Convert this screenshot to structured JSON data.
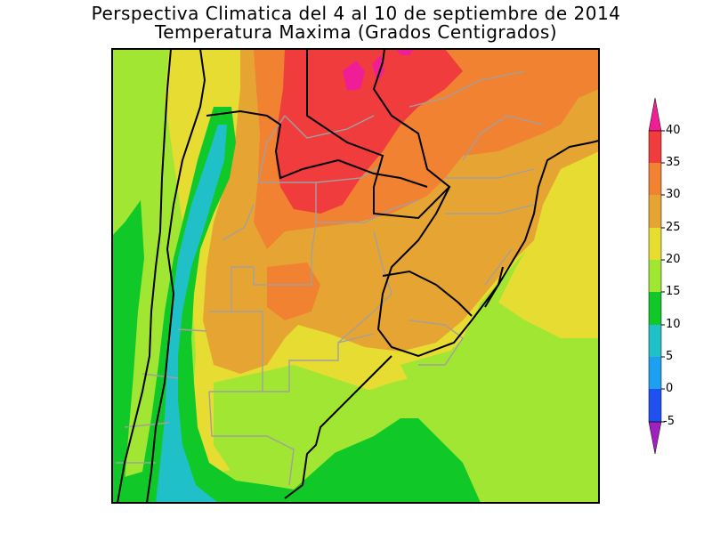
{
  "title": {
    "line1": "Perspectiva Climatica del 4 al 10 de septiembre de 2014",
    "line2": "Temperatura Maxima (Grados Centigrados)"
  },
  "legend": {
    "ticks": [
      "40",
      "35",
      "30",
      "25",
      "20",
      "15",
      "10",
      "5",
      "0",
      "-5"
    ],
    "bins": [
      {
        "range": "< -5",
        "color": "#a020c0"
      },
      {
        "range": "-5 to 0",
        "color": "#2050f0"
      },
      {
        "range": "0 to 5",
        "color": "#1ea0f0"
      },
      {
        "range": "5 to 10",
        "color": "#20c0c8"
      },
      {
        "range": "10 to 15",
        "color": "#10c828"
      },
      {
        "range": "15 to 20",
        "color": "#a0e632"
      },
      {
        "range": "20 to 25",
        "color": "#e6dc32"
      },
      {
        "range": "25 to 30",
        "color": "#e6a532"
      },
      {
        "range": "30 to 35",
        "color": "#f08232"
      },
      {
        "range": "35 to 40",
        "color": "#f03c3c"
      },
      {
        "range": "> 40",
        "color": "#f01e96"
      }
    ]
  },
  "map": {
    "region": "Southern South America (Argentina, Uruguay, Paraguay, southern Brazil)",
    "variable": "Maximum temperature",
    "units": "°C",
    "colors": {
      "ocean_pacific": "#a0e632",
      "border_country": "#000000",
      "border_province": "#a0a0a0"
    }
  }
}
